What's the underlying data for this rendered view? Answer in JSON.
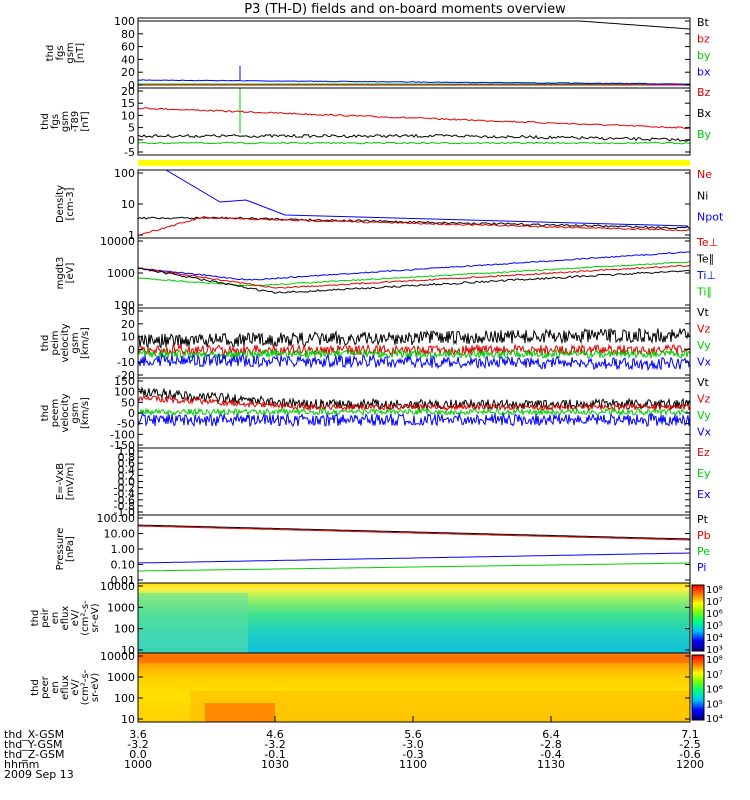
{
  "title": "P3 (TH-D) fields and on-board moments overview",
  "colors": {
    "black": "#000000",
    "red": "#e00000",
    "green": "#00cc00",
    "blue": "#0000ff",
    "yellow": "#ffff00"
  },
  "x_axis": {
    "rows": [
      {
        "label": "thd_X-GSM",
        "values": [
          "3.6",
          "4.6",
          "5.6",
          "6.4",
          "7.1"
        ]
      },
      {
        "label": "thd_Y-GSM",
        "values": [
          "-3.2",
          "-3.2",
          "-3.0",
          "-2.8",
          "-2.5"
        ]
      },
      {
        "label": "thd_Z-GSM",
        "values": [
          "0.0",
          "-0.1",
          "-0.3",
          "-0.4",
          "-0.6"
        ]
      },
      {
        "label": "hhmm",
        "values": [
          "1000",
          "1030",
          "1100",
          "1130",
          "1200"
        ]
      }
    ],
    "date": "2009 Sep 13"
  },
  "colorbars": [
    {
      "ticks": [
        "10⁸",
        "10⁷",
        "10⁶",
        "10⁵",
        "10⁴",
        "10³"
      ]
    },
    {
      "ticks": [
        "10⁸",
        "10⁷",
        "10⁶",
        "10⁵",
        "10⁴"
      ]
    }
  ],
  "chart_data": [
    {
      "type": "line",
      "name": "fgs-gsm",
      "ylabel": [
        "thd",
        "fgs",
        "gsm",
        "[nT]"
      ],
      "yticks": [
        "100",
        "80",
        "60",
        "40",
        "20",
        "0"
      ],
      "ylim": [
        0,
        100
      ],
      "series": [
        {
          "name": "Bt",
          "color": "black"
        },
        {
          "name": "bz",
          "color": "red"
        },
        {
          "name": "by",
          "color": "green"
        },
        {
          "name": "bx",
          "color": "blue"
        }
      ]
    },
    {
      "type": "line",
      "name": "fgs-dsl",
      "ylabel": [
        "thd",
        "fgs",
        "gsm",
        "-T89",
        "[nT]"
      ],
      "yticks": [
        "20",
        "15",
        "10",
        "5",
        "0",
        "-5"
      ],
      "ylim": [
        -8,
        22
      ],
      "series": [
        {
          "name": "Bz",
          "color": "red"
        },
        {
          "name": "Bx",
          "color": "black"
        },
        {
          "name": "By",
          "color": "green"
        }
      ]
    },
    {
      "type": "line",
      "name": "density",
      "ylabel": [
        "Density",
        "[cm-3]"
      ],
      "yticks": [
        "100",
        "10",
        "1"
      ],
      "log": true,
      "series": [
        {
          "name": "Ne",
          "color": "red"
        },
        {
          "name": "Ni",
          "color": "black"
        },
        {
          "name": "Npot",
          "color": "blue"
        }
      ]
    },
    {
      "type": "line",
      "name": "temperature",
      "ylabel": [
        "mgdt3",
        "[eV]"
      ],
      "yticks": [
        "10000",
        "1000",
        "100"
      ],
      "log": true,
      "series": [
        {
          "name": "Te⊥",
          "color": "red"
        },
        {
          "name": "Te∥",
          "color": "black"
        },
        {
          "name": "Ti⊥",
          "color": "blue"
        },
        {
          "name": "Ti∥",
          "color": "green"
        }
      ]
    },
    {
      "type": "line",
      "name": "peim-velocity",
      "ylabel": [
        "thd",
        "peim",
        "velocity",
        "gsm",
        "[km/s]"
      ],
      "yticks": [
        "30",
        "20",
        "10",
        "0",
        "-10",
        "-20"
      ],
      "ylim": [
        -20,
        30
      ],
      "series": [
        {
          "name": "Vt",
          "color": "black"
        },
        {
          "name": "Vz",
          "color": "red"
        },
        {
          "name": "Vy",
          "color": "green"
        },
        {
          "name": "Vx",
          "color": "blue"
        }
      ]
    },
    {
      "type": "line",
      "name": "peem-velocity",
      "ylabel": [
        "thd",
        "peem",
        "velocity",
        "gsm",
        "[km/s]"
      ],
      "yticks": [
        "150",
        "100",
        "50",
        "0",
        "-50",
        "-100",
        "-150"
      ],
      "ylim": [
        -150,
        160
      ],
      "series": [
        {
          "name": "Vt",
          "color": "black"
        },
        {
          "name": "Vz",
          "color": "red"
        },
        {
          "name": "Vy",
          "color": "green"
        },
        {
          "name": "Vx",
          "color": "blue"
        }
      ]
    },
    {
      "type": "line",
      "name": "efield",
      "ylabel": [
        "E=-VxB",
        "[mV/m]"
      ],
      "yticks": [
        "1.0",
        "0.8",
        "0.6",
        "0.4",
        "0.2",
        "0.0",
        "-0.2",
        "-0.4",
        "-0.6",
        "-0.8",
        "-1.0"
      ],
      "ylim": [
        -1,
        1
      ],
      "series": [
        {
          "name": "Ez",
          "color": "red"
        },
        {
          "name": "Ey",
          "color": "green"
        },
        {
          "name": "Ex",
          "color": "blue"
        }
      ]
    },
    {
      "type": "line",
      "name": "pressure",
      "ylabel": [
        "Pressure",
        "[nPa]"
      ],
      "yticks": [
        "100.00",
        "10.00",
        "1.00",
        "0.10",
        "0.01"
      ],
      "log": true,
      "series": [
        {
          "name": "Pt",
          "color": "black"
        },
        {
          "name": "Pb",
          "color": "red"
        },
        {
          "name": "Pe",
          "color": "green"
        },
        {
          "name": "Pi",
          "color": "blue"
        }
      ]
    },
    {
      "type": "heatmap",
      "name": "peir",
      "ylabel": [
        "thd",
        "peir",
        "en",
        "eflux",
        "eV/",
        "(cm²-s-",
        "sr-eV)"
      ],
      "yticks": [
        "10000",
        "1000",
        "100",
        "10"
      ],
      "log": true
    },
    {
      "type": "heatmap",
      "name": "peer",
      "ylabel": [
        "thd",
        "peer",
        "en",
        "eflux",
        "eV/",
        "(cm²-s-",
        "sr-eV)"
      ],
      "yticks": [
        "10000",
        "1000",
        "100",
        "10"
      ],
      "log": true
    }
  ]
}
